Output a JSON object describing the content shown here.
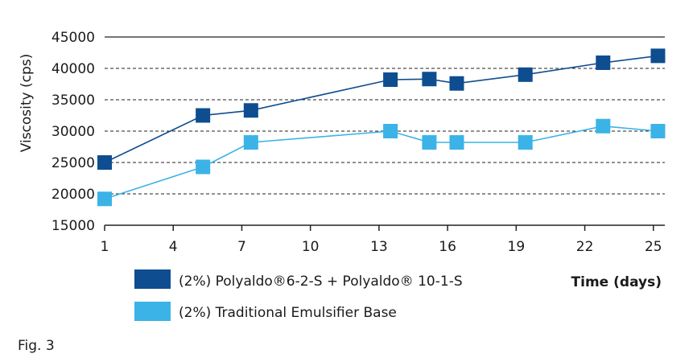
{
  "chart_data": {
    "type": "line",
    "xlabel": "Time (days)",
    "ylabel": "Viscosity (cps)",
    "xlim": [
      1,
      25.5
    ],
    "ylim": [
      15000,
      45000
    ],
    "x_ticks": [
      "1",
      "4",
      "7",
      "10",
      "13",
      "16",
      "19",
      "22",
      "25"
    ],
    "y_ticks": [
      "15000",
      "20000",
      "25000",
      "30000",
      "35000",
      "40000",
      "45000"
    ],
    "grid": "horizontal-dashed",
    "legend_position": "bottom",
    "series": [
      {
        "name": "(2%) Polyaldo®6-2-S + Polyaldo® 10-1-S",
        "color": "#0e4d8f",
        "x": [
          1,
          5.3,
          7.4,
          13.5,
          15.2,
          16.4,
          19.4,
          22.8,
          25.2
        ],
        "y": [
          25000,
          32500,
          33300,
          38200,
          38300,
          37600,
          39000,
          40900,
          42000
        ]
      },
      {
        "name": "(2%) Traditional Emulsifier Base",
        "color": "#3bb3e7",
        "x": [
          1,
          5.3,
          7.4,
          13.5,
          15.2,
          16.4,
          19.4,
          22.8,
          25.2
        ],
        "y": [
          19200,
          24300,
          28200,
          30000,
          28200,
          28200,
          28200,
          30800,
          30000
        ]
      }
    ]
  },
  "caption": "Fig. 3"
}
